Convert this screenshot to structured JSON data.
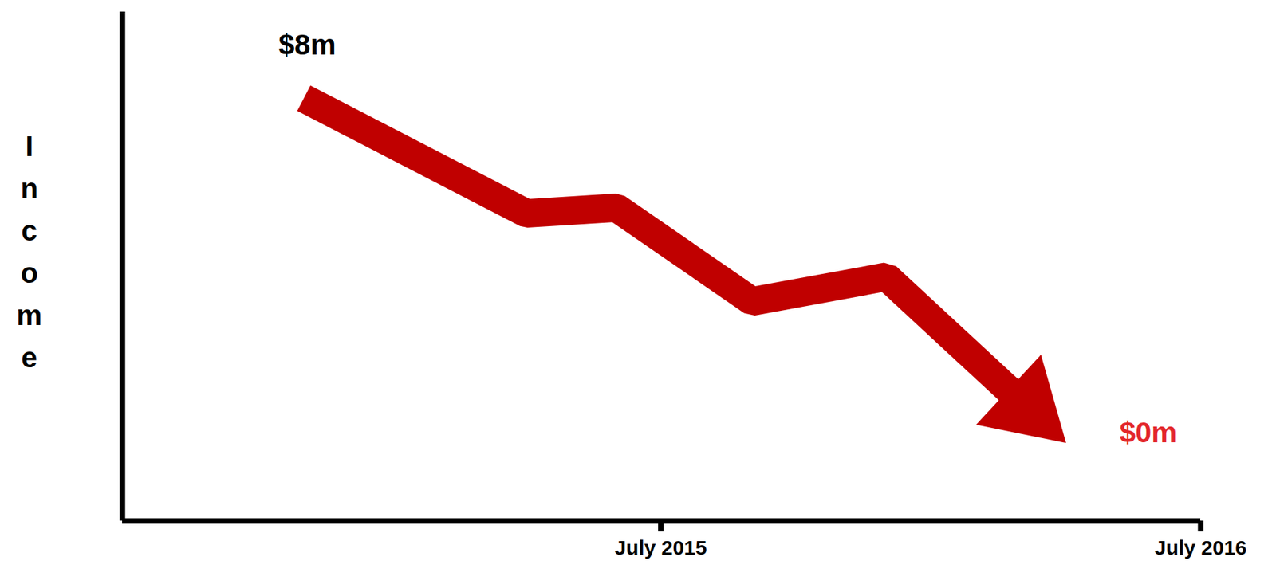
{
  "chart_data": {
    "type": "line",
    "ylabel": "Income",
    "x": [
      "2014-11",
      "2015-04",
      "2015-06",
      "2015-09",
      "2015-12",
      "2016-04"
    ],
    "values": [
      8,
      5.33,
      5.46,
      3.29,
      3.86,
      0
    ],
    "color": "#c00000",
    "xlim": [
      "2014-07",
      "2016-07"
    ],
    "xticks": [
      {
        "value": "2015-07",
        "label": "July 2015"
      },
      {
        "value": "2016-07",
        "label": "July 2016"
      }
    ],
    "ylim": [
      -1.8,
      10
    ],
    "yticks": [],
    "tick_labels": "x",
    "annotations": [
      {
        "text": "$8m",
        "x": "2014-11",
        "y": 8,
        "color": "#000000"
      },
      {
        "text": "$0m",
        "x": "2016-04",
        "y": 0,
        "color": "#e3262b"
      }
    ]
  }
}
